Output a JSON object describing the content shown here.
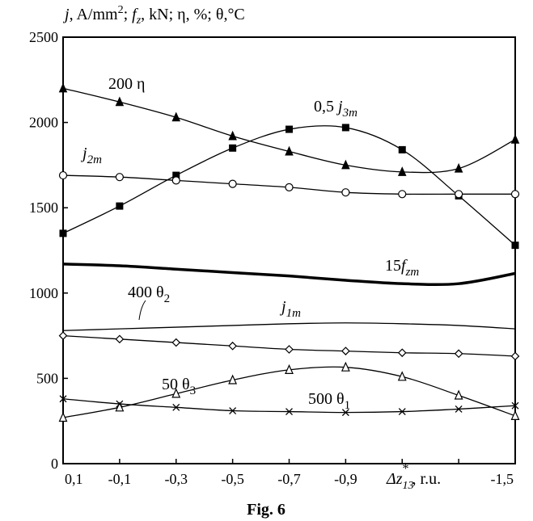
{
  "chart_data": {
    "type": "line",
    "caption": "Fig. 6",
    "ylabel_parts": {
      "j": "j",
      "units1": ", A/mm",
      "sup": "2",
      "sep1": "; ",
      "f": "f",
      "fsub": "z",
      "units2": ", kN; ",
      "eta": "η",
      "units3": ", %; ",
      "theta": "θ",
      "units4": ",°C"
    },
    "xlabel_parts": {
      "delta": "Δz",
      "sub": "13",
      "sup": "*",
      "units": ", r.u."
    },
    "x": [
      0.1,
      -0.1,
      -0.3,
      -0.5,
      -0.7,
      -0.9,
      -1.1,
      -1.3,
      -1.5
    ],
    "x_tick_labels": [
      "0,1",
      "-0,1",
      "-0,3",
      "-0,5",
      "-0,7",
      "-0,9",
      "",
      "",
      "-1,5"
    ],
    "xlim": [
      0.1,
      -1.5
    ],
    "ylim": [
      0,
      2500
    ],
    "y_ticks": [
      0,
      500,
      1000,
      1500,
      2000,
      2500
    ],
    "y_tick_labels": [
      "0",
      "500",
      "1000",
      "1500",
      "2000",
      "2500"
    ],
    "series": [
      {
        "name": "200 η",
        "label_main": "200 η",
        "marker": "filled-triangle",
        "values": [
          2200,
          2120,
          2030,
          1920,
          1830,
          1750,
          1710,
          1730,
          1900
        ]
      },
      {
        "name": "0,5 j3m",
        "label_main": "0,5 ",
        "label_var": "j",
        "label_sub": "3m",
        "marker": "filled-square",
        "values": [
          1350,
          1510,
          1690,
          1850,
          1960,
          1970,
          1840,
          1570,
          1280
        ]
      },
      {
        "name": "j2m",
        "label_var": "j",
        "label_sub": "2m",
        "marker": "open-circle",
        "values": [
          1690,
          1680,
          1660,
          1640,
          1620,
          1590,
          1580,
          1580,
          1580
        ]
      },
      {
        "name": "15 fzm",
        "label_main": "15",
        "label_var": "f",
        "label_sub": "zm",
        "marker": "none",
        "bold": true,
        "values": [
          1170,
          1160,
          1140,
          1120,
          1100,
          1075,
          1055,
          1055,
          1115
        ]
      },
      {
        "name": "j1m",
        "label_var": "j",
        "label_sub": "1m",
        "marker": "none",
        "values": [
          780,
          790,
          800,
          810,
          820,
          825,
          820,
          810,
          790
        ]
      },
      {
        "name": "400 θ2",
        "label_main": "400 θ",
        "label_sub": "2",
        "marker": "open-diamond",
        "values": [
          750,
          730,
          710,
          690,
          670,
          660,
          650,
          645,
          630
        ]
      },
      {
        "name": "50 θ3",
        "label_main": "50 θ",
        "label_sub": "3",
        "marker": "open-triangle",
        "values": [
          270,
          330,
          410,
          490,
          550,
          565,
          510,
          400,
          280
        ]
      },
      {
        "name": "500 θ1",
        "label_main": "500 θ",
        "label_sub": "1",
        "marker": "cross",
        "values": [
          380,
          350,
          330,
          310,
          305,
          300,
          305,
          320,
          340
        ]
      }
    ]
  }
}
